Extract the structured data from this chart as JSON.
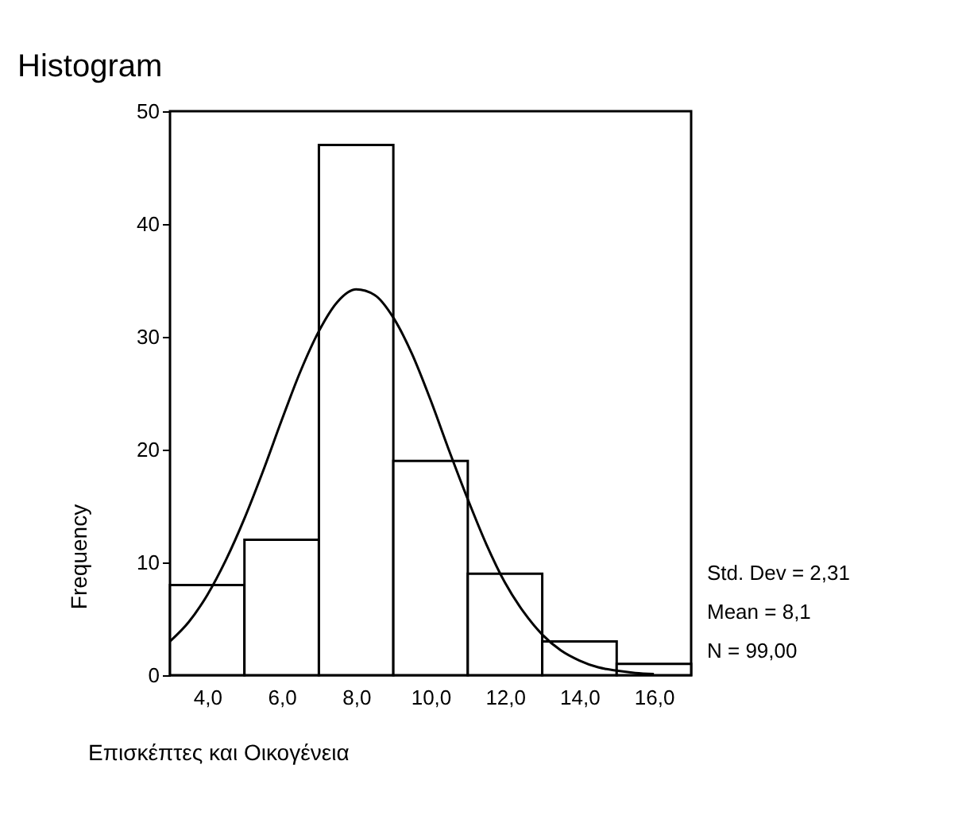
{
  "chart_data": {
    "type": "histogram",
    "title": "Histogram",
    "xlabel": "Επισκέπτες και Οικογένεια",
    "ylabel": "Frequency",
    "bins": [
      3,
      5,
      7,
      9,
      11,
      13,
      15,
      17
    ],
    "values": [
      8,
      12,
      47,
      19,
      9,
      3,
      1
    ],
    "color": "#ffffff",
    "series": [
      {
        "type": "line",
        "color": "#000000",
        "x": [
          3,
          3.5,
          4,
          4.5,
          5,
          5.5,
          6,
          6.5,
          7,
          7.5,
          8,
          8.5,
          9,
          9.5,
          10,
          10.5,
          11,
          11.5,
          12,
          12.5,
          13,
          13.5,
          14,
          14.5,
          15,
          15.5,
          16
        ],
        "values": [
          3.0,
          4.7,
          7.1,
          10.2,
          13.9,
          18.1,
          22.6,
          26.9,
          30.5,
          33.1,
          34.2,
          33.7,
          31.7,
          28.5,
          24.4,
          19.9,
          15.6,
          11.6,
          8.2,
          5.6,
          3.6,
          2.2,
          1.3,
          0.7,
          0.4,
          0.2,
          0.1
        ]
      }
    ],
    "xlim": [
      3,
      17
    ],
    "xticks": [
      {
        "value": 4,
        "label": "4,0"
      },
      {
        "value": 6,
        "label": "6,0"
      },
      {
        "value": 8,
        "label": "8,0"
      },
      {
        "value": 10,
        "label": "10,0"
      },
      {
        "value": 12,
        "label": "12,0"
      },
      {
        "value": 14,
        "label": "14,0"
      },
      {
        "value": 16,
        "label": "16,0"
      }
    ],
    "ylim": [
      0,
      50
    ],
    "yticks": [
      0,
      10,
      20,
      30,
      40,
      50
    ],
    "annotations": [
      "Std. Dev = 2,31",
      "Mean = 8,1",
      "N = 99,00"
    ]
  }
}
